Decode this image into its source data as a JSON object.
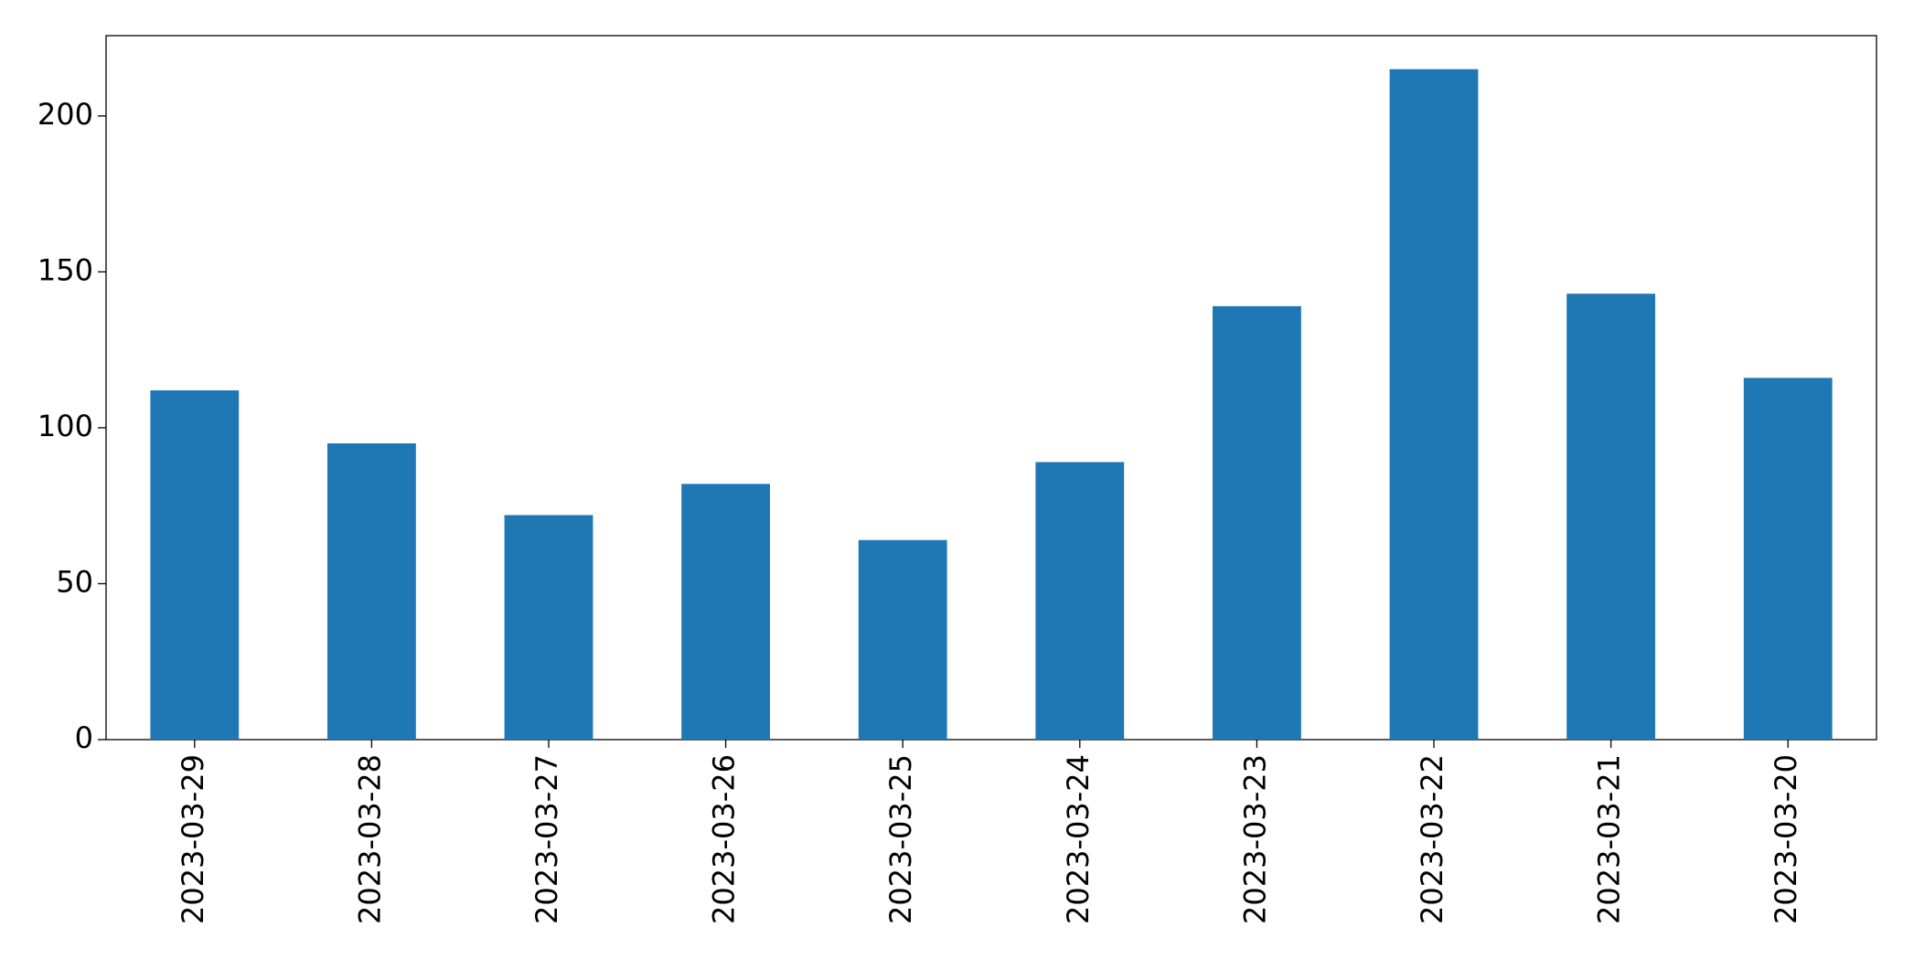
{
  "chart_data": {
    "type": "bar",
    "categories": [
      "2023-03-29",
      "2023-03-28",
      "2023-03-27",
      "2023-03-26",
      "2023-03-25",
      "2023-03-24",
      "2023-03-23",
      "2023-03-22",
      "2023-03-21",
      "2023-03-20"
    ],
    "values": [
      112,
      95,
      72,
      82,
      64,
      89,
      139,
      215,
      143,
      116
    ],
    "color": "#1f77b4",
    "ylim": [
      0,
      225.75
    ],
    "yticks": [
      0,
      50,
      100,
      150,
      200
    ],
    "grid": false
  }
}
